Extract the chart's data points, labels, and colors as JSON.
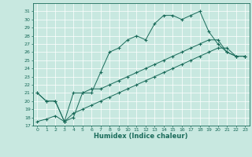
{
  "title": "",
  "xlabel": "Humidex (Indice chaleur)",
  "xlim": [
    -0.5,
    23.5
  ],
  "ylim": [
    17,
    32
  ],
  "yticks": [
    17,
    18,
    19,
    20,
    21,
    22,
    23,
    24,
    25,
    26,
    27,
    28,
    29,
    30,
    31
  ],
  "xticks": [
    0,
    1,
    2,
    3,
    4,
    5,
    6,
    7,
    8,
    9,
    10,
    11,
    12,
    13,
    14,
    15,
    16,
    17,
    18,
    19,
    20,
    21,
    22,
    23
  ],
  "bg_color": "#c8e8e0",
  "line_color": "#1a6b5a",
  "line1_x": [
    0,
    1,
    2,
    3,
    4,
    5,
    6,
    7,
    8,
    9,
    10,
    11,
    12,
    13,
    14,
    15,
    16,
    17,
    18,
    19,
    20,
    21,
    22,
    23
  ],
  "line1_y": [
    21.0,
    20.0,
    20.0,
    17.5,
    18.0,
    21.0,
    21.0,
    23.5,
    26.0,
    26.5,
    27.5,
    28.0,
    27.5,
    29.5,
    30.5,
    30.5,
    30.0,
    30.5,
    31.0,
    28.5,
    27.0,
    26.0,
    25.5,
    25.5
  ],
  "line2_x": [
    0,
    1,
    2,
    3,
    4,
    5,
    6,
    7,
    8,
    9,
    10,
    11,
    12,
    13,
    14,
    15,
    16,
    17,
    18,
    19,
    20,
    21,
    22,
    23
  ],
  "line2_y": [
    21.0,
    20.0,
    20.0,
    17.5,
    21.0,
    21.0,
    21.5,
    21.5,
    22.0,
    22.5,
    23.0,
    23.5,
    24.0,
    24.5,
    25.0,
    25.5,
    26.0,
    26.5,
    27.0,
    27.5,
    27.5,
    26.0,
    25.5,
    25.5
  ],
  "line3_x": [
    0,
    1,
    2,
    3,
    4,
    5,
    6,
    7,
    8,
    9,
    10,
    11,
    12,
    13,
    14,
    15,
    16,
    17,
    18,
    19,
    20,
    21,
    22,
    23
  ],
  "line3_y": [
    17.5,
    17.8,
    18.2,
    17.5,
    18.5,
    19.0,
    19.5,
    20.0,
    20.5,
    21.0,
    21.5,
    22.0,
    22.5,
    23.0,
    23.5,
    24.0,
    24.5,
    25.0,
    25.5,
    26.0,
    26.5,
    26.5,
    25.5,
    25.5
  ]
}
